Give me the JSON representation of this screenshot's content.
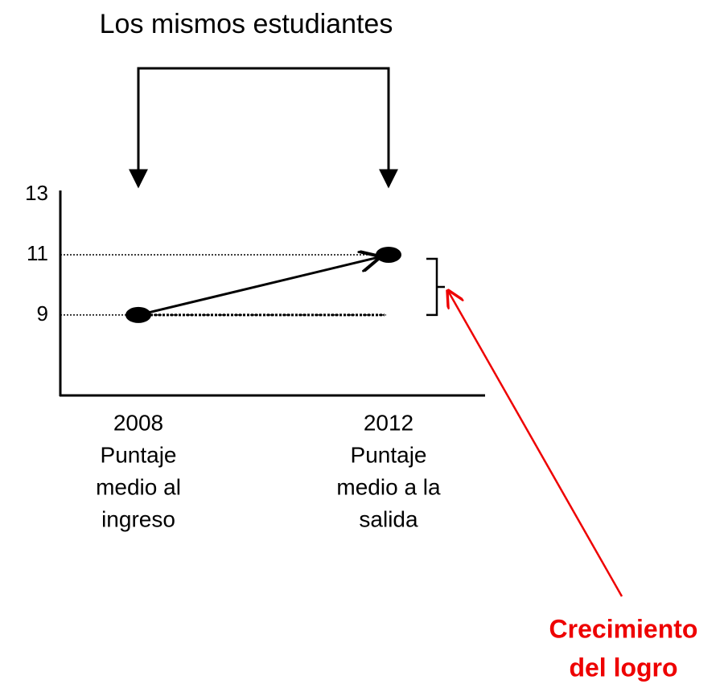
{
  "chart_data": {
    "type": "line",
    "title": "Los mismos estudiantes",
    "categories": [
      [
        "2008",
        "Puntaje",
        "medio al",
        "ingreso"
      ],
      [
        "2012",
        "Puntaje",
        "medio a la",
        "salida"
      ]
    ],
    "values": [
      9,
      11
    ],
    "color": "#000000",
    "ylim": [
      6.33,
      13
    ],
    "yticks": [
      9,
      11,
      13
    ],
    "annotation": {
      "lines": [
        "Crecimiento",
        "del logro"
      ],
      "color": "#ee0000"
    }
  }
}
